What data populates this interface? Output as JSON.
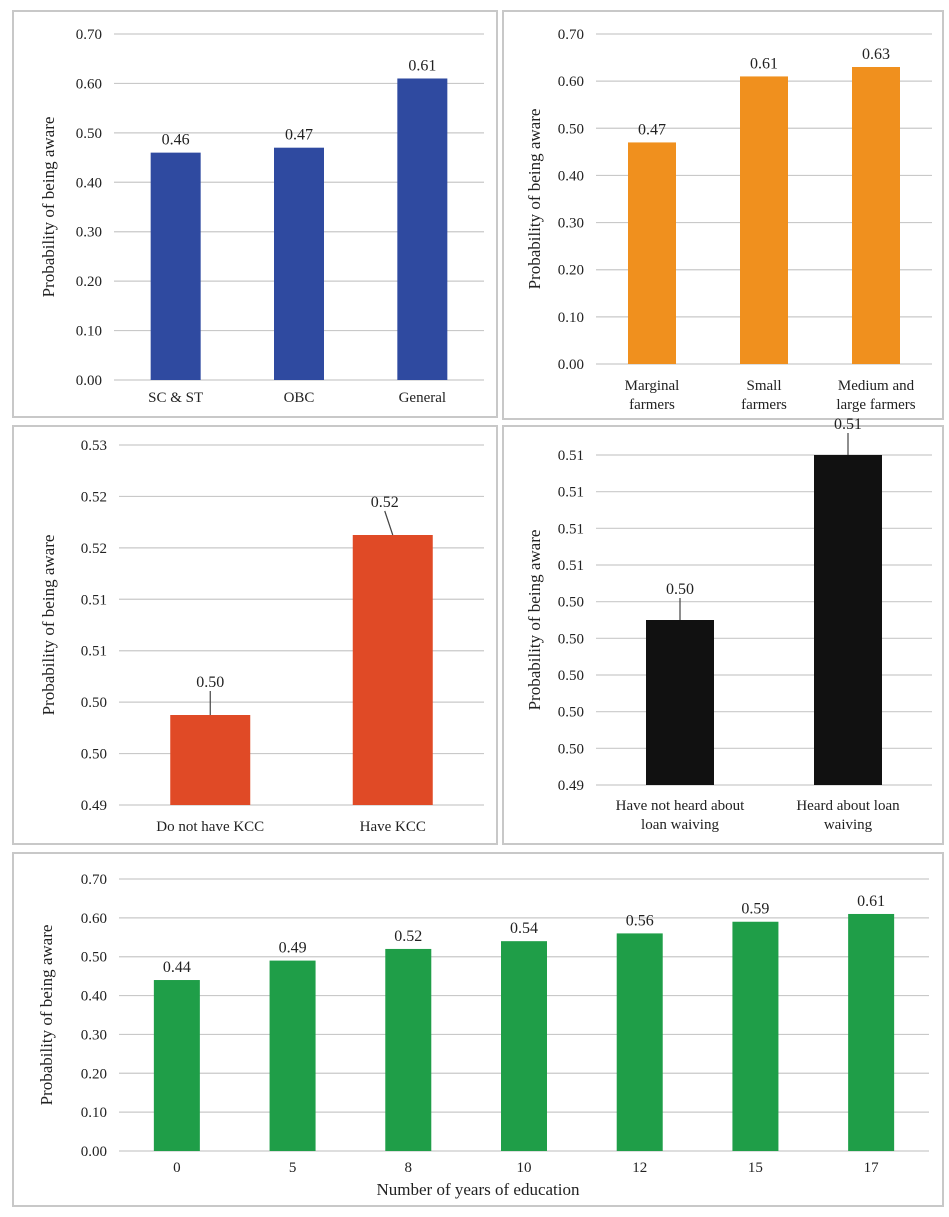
{
  "chart_data": [
    {
      "type": "bar",
      "categories": [
        "SC & ST",
        "OBC",
        "General"
      ],
      "values": [
        0.46,
        0.47,
        0.61
      ],
      "data_labels": [
        "0.46",
        "0.47",
        "0.61"
      ],
      "title": "",
      "xlabel": "",
      "ylabel": "Probability of being aware",
      "ylim": [
        0,
        0.7
      ],
      "yticks": [
        "0.00",
        "0.10",
        "0.20",
        "0.30",
        "0.40",
        "0.50",
        "0.60",
        "0.70"
      ],
      "grid": true,
      "color": "#2f4aa0"
    },
    {
      "type": "bar",
      "categories": [
        [
          "Marginal",
          "farmers"
        ],
        [
          "Small",
          "farmers"
        ],
        [
          "Medium and",
          "large farmers"
        ]
      ],
      "values": [
        0.47,
        0.61,
        0.63
      ],
      "data_labels": [
        "0.47",
        "0.61",
        "0.63"
      ],
      "title": "",
      "xlabel": "",
      "ylabel": "Probability of being aware",
      "ylim": [
        0,
        0.7
      ],
      "yticks": [
        "0.00",
        "0.10",
        "0.20",
        "0.30",
        "0.40",
        "0.50",
        "0.60",
        "0.70"
      ],
      "grid": true,
      "color": "#f0901e"
    },
    {
      "type": "bar",
      "categories": [
        "Do not have KCC",
        "Have KCC"
      ],
      "values": [
        0.5,
        0.52
      ],
      "data_labels": [
        "0.50",
        "0.52"
      ],
      "title": "",
      "xlabel": "",
      "ylabel": "Probability of being aware",
      "ylim": [
        0.49,
        0.53
      ],
      "yticks": [
        "0.49",
        "0.50",
        "0.50",
        "0.51",
        "0.51",
        "0.52",
        "0.52",
        "0.53"
      ],
      "grid": true,
      "color": "#e04a26"
    },
    {
      "type": "bar",
      "categories": [
        [
          "Have not heard about",
          "loan waiving"
        ],
        [
          "Heard about loan",
          "waiving"
        ]
      ],
      "values": [
        0.5,
        0.51
      ],
      "data_labels": [
        "0.50",
        "0.51"
      ],
      "title": "",
      "xlabel": "",
      "ylabel": "Probability of being aware",
      "ylim": [
        0.49,
        0.51
      ],
      "yticks": [
        "0.49",
        "0.50",
        "0.50",
        "0.50",
        "0.50",
        "0.50",
        "0.51",
        "0.51",
        "0.51",
        "0.51"
      ],
      "grid": true,
      "color": "#111111"
    },
    {
      "type": "bar",
      "categories": [
        "0",
        "5",
        "8",
        "10",
        "12",
        "15",
        "17"
      ],
      "values": [
        0.44,
        0.49,
        0.52,
        0.54,
        0.56,
        0.59,
        0.61
      ],
      "data_labels": [
        "0.44",
        "0.49",
        "0.52",
        "0.54",
        "0.56",
        "0.59",
        "0.61"
      ],
      "title": "",
      "xlabel": "Number of years of education",
      "ylabel": "Probability of being aware",
      "ylim": [
        0,
        0.7
      ],
      "yticks": [
        "0.00",
        "0.10",
        "0.20",
        "0.30",
        "0.40",
        "0.50",
        "0.60",
        "0.70"
      ],
      "grid": true,
      "color": "#1f9e48"
    }
  ]
}
